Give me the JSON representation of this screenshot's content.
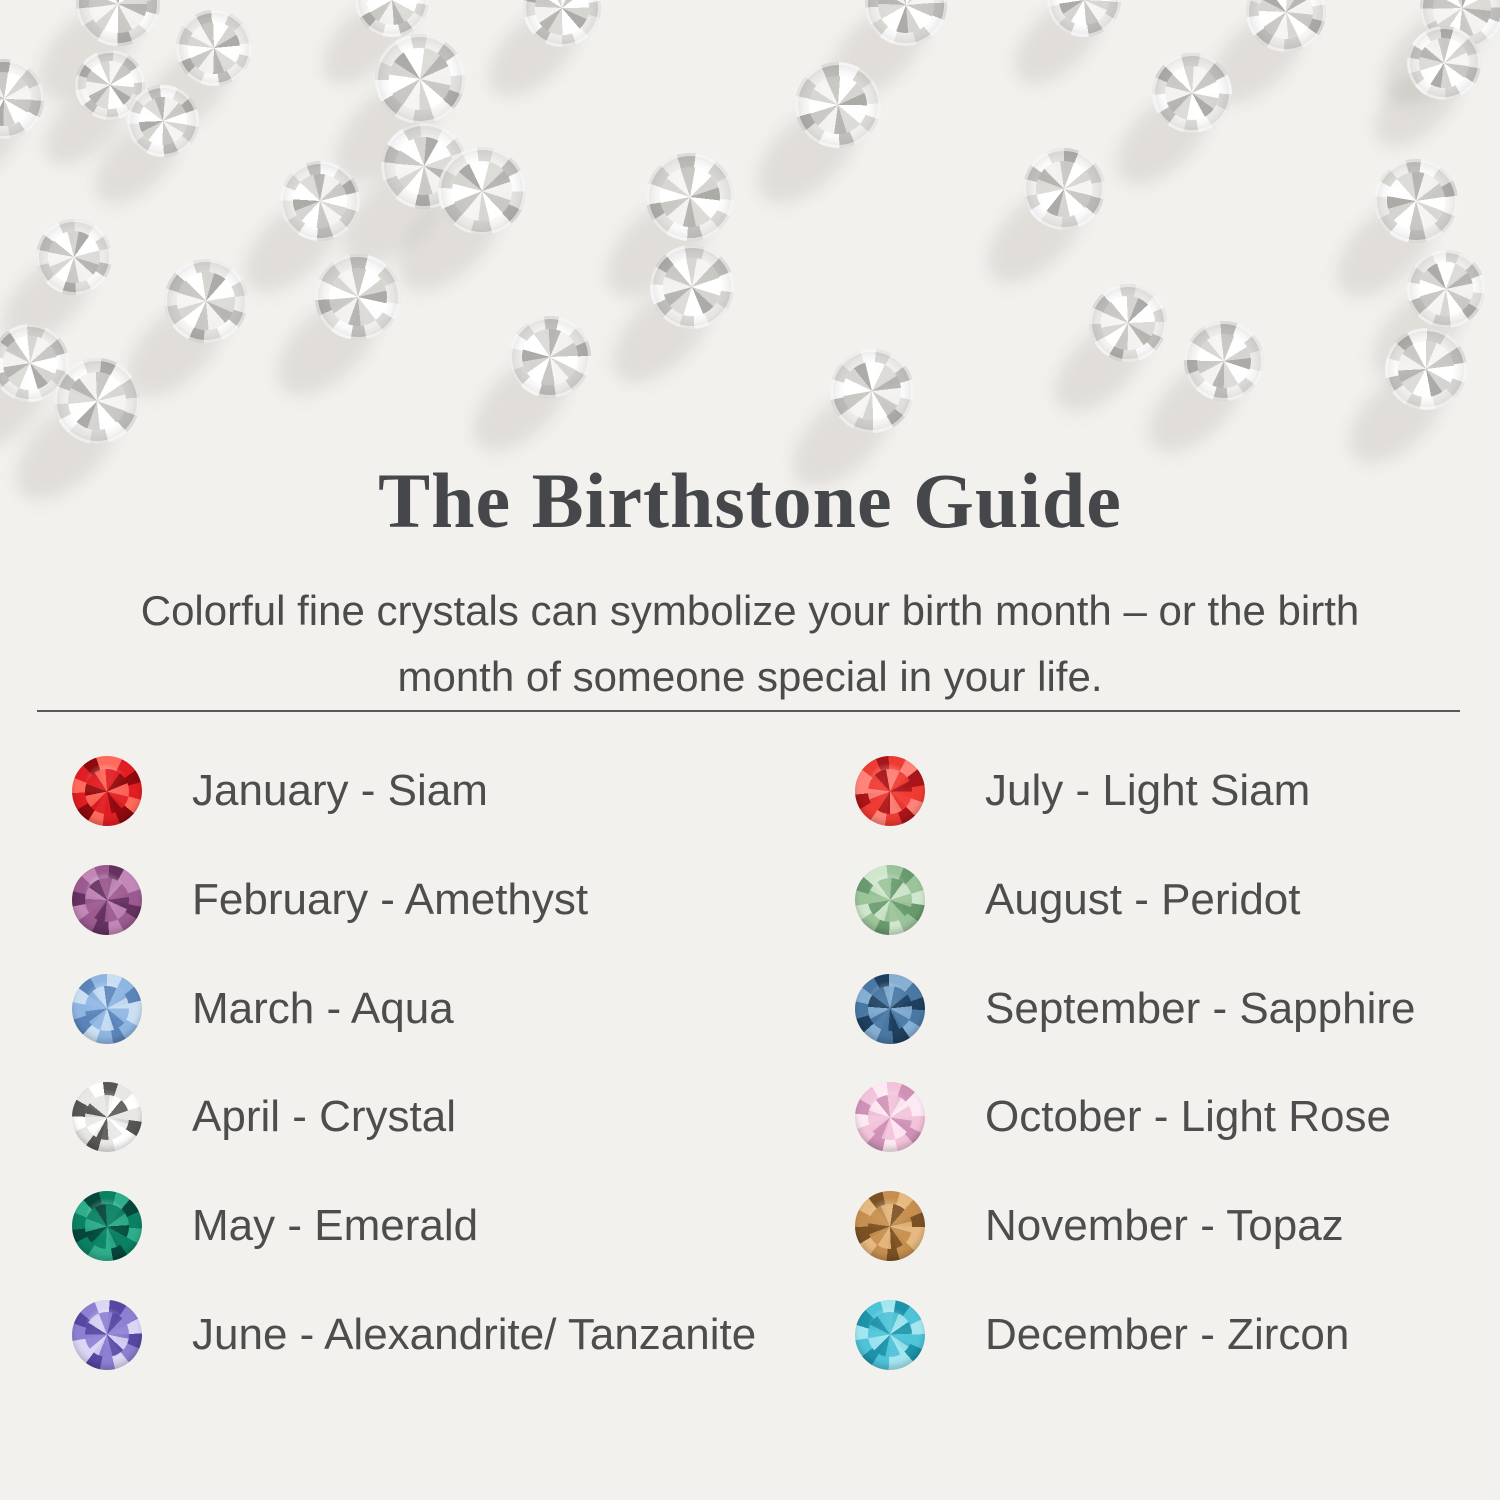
{
  "page": {
    "background": "#f3f1ee"
  },
  "hero": {
    "crystal_base_color": "#e9e7e4",
    "crystals": [
      [
        118,
        4,
        84
      ],
      [
        392,
        0,
        74
      ],
      [
        562,
        8,
        78
      ],
      [
        906,
        5,
        82
      ],
      [
        1084,
        0,
        74
      ],
      [
        1286,
        12,
        80
      ],
      [
        1462,
        8,
        84
      ],
      [
        214,
        48,
        76
      ],
      [
        110,
        85,
        70
      ],
      [
        4,
        99,
        80
      ],
      [
        163,
        121,
        72
      ],
      [
        420,
        79,
        90
      ],
      [
        424,
        166,
        86
      ],
      [
        838,
        105,
        86
      ],
      [
        1192,
        93,
        80
      ],
      [
        1444,
        63,
        74
      ],
      [
        320,
        201,
        80
      ],
      [
        482,
        191,
        88
      ],
      [
        74,
        257,
        76
      ],
      [
        690,
        197,
        88
      ],
      [
        692,
        287,
        84
      ],
      [
        1064,
        189,
        82
      ],
      [
        1416,
        201,
        84
      ],
      [
        1446,
        289,
        78
      ],
      [
        206,
        301,
        84
      ],
      [
        358,
        297,
        86
      ],
      [
        30,
        363,
        78
      ],
      [
        97,
        401,
        86
      ],
      [
        550,
        357,
        82
      ],
      [
        872,
        391,
        84
      ],
      [
        1128,
        323,
        78
      ],
      [
        1224,
        361,
        80
      ],
      [
        1426,
        369,
        82
      ]
    ]
  },
  "header": {
    "title": "The Birthstone Guide",
    "subtitle_line1": "Colorful fine crystals can symbolize your birth month – or the birth",
    "subtitle_line2": "month of someone special in your life."
  },
  "guide": {
    "items": [
      {
        "label": "January - Siam",
        "gem_colors": {
          "light": "#ff6a5c",
          "base": "#e01e23",
          "dark": "#8e0a0e"
        }
      },
      {
        "label": "February - Amethyst",
        "gem_colors": {
          "light": "#c287b6",
          "base": "#9c5b90",
          "dark": "#643260"
        }
      },
      {
        "label": "March - Aqua",
        "gem_colors": {
          "light": "#cadff3",
          "base": "#8fb6e2",
          "dark": "#5b85b9"
        }
      },
      {
        "label": "April - Crystal",
        "gem_colors": {
          "light": "#ffffff",
          "base": "#e8e7e5",
          "dark": "#565654"
        }
      },
      {
        "label": "May - Emerald",
        "gem_colors": {
          "light": "#2fae8b",
          "base": "#0b8163",
          "dark": "#05473a"
        }
      },
      {
        "label": "June - Alexandrite/ Tanzanite",
        "gem_colors": {
          "light": "#dcd6f5",
          "base": "#8d7fd2",
          "dark": "#5747a2"
        }
      },
      {
        "label": "July - Light Siam",
        "gem_colors": {
          "light": "#ff857b",
          "base": "#ee3b33",
          "dark": "#a91519"
        }
      },
      {
        "label": "August - Peridot",
        "gem_colors": {
          "light": "#d0e6cd",
          "base": "#9cc49b",
          "dark": "#699a6e"
        }
      },
      {
        "label": "September - Sapphire",
        "gem_colors": {
          "light": "#85afd3",
          "base": "#4a78a4",
          "dark": "#1f3f5e"
        }
      },
      {
        "label": "October - Light Rose",
        "gem_colors": {
          "light": "#fde9f3",
          "base": "#f2c3da",
          "dark": "#cf91b6"
        }
      },
      {
        "label": "November - Topaz",
        "gem_colors": {
          "light": "#e5b97f",
          "base": "#c68f4f",
          "dark": "#7b5124"
        }
      },
      {
        "label": "December - Zircon",
        "gem_colors": {
          "light": "#a4e6f0",
          "base": "#4fc3d8",
          "dark": "#1e93a9"
        }
      }
    ]
  }
}
